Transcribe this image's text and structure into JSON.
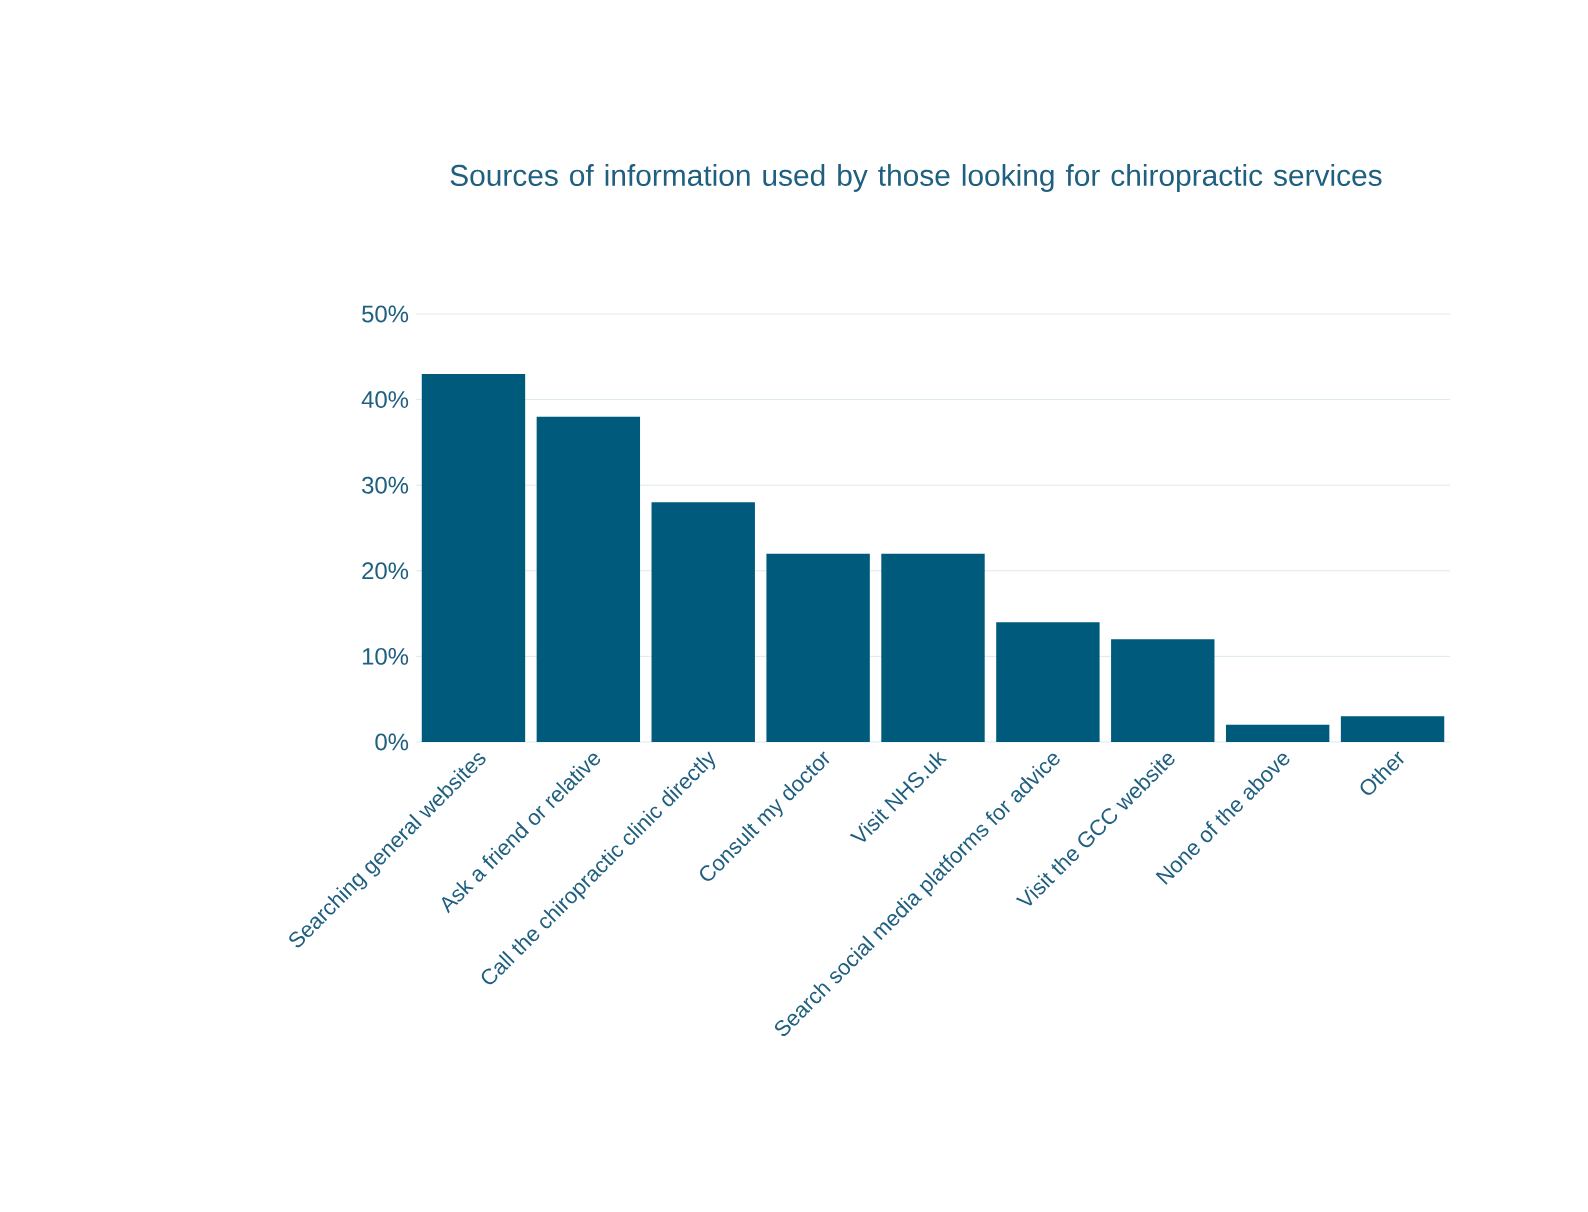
{
  "chart_data": {
    "type": "bar",
    "title": "Sources of information used by those looking for chiropractic services",
    "categories": [
      "Searching general websites",
      "Ask a friend or relative",
      "Call the chiropractic clinic directly",
      "Consult my doctor",
      "Visit NHS.uk",
      "Search social media platforms for advice",
      "Visit the GCC website",
      "None of the above",
      "Other"
    ],
    "values": [
      43,
      38,
      28,
      22,
      22,
      14,
      12,
      2,
      3
    ],
    "color": "#005a7c",
    "ylim": [
      0,
      50
    ],
    "yticks": [
      {
        "value": 0,
        "label": "0%"
      },
      {
        "value": 10,
        "label": "10%"
      },
      {
        "value": 20,
        "label": "20%"
      },
      {
        "value": 30,
        "label": "30%"
      },
      {
        "value": 40,
        "label": "40%"
      },
      {
        "value": 50,
        "label": "50%"
      }
    ],
    "grid": "y"
  }
}
